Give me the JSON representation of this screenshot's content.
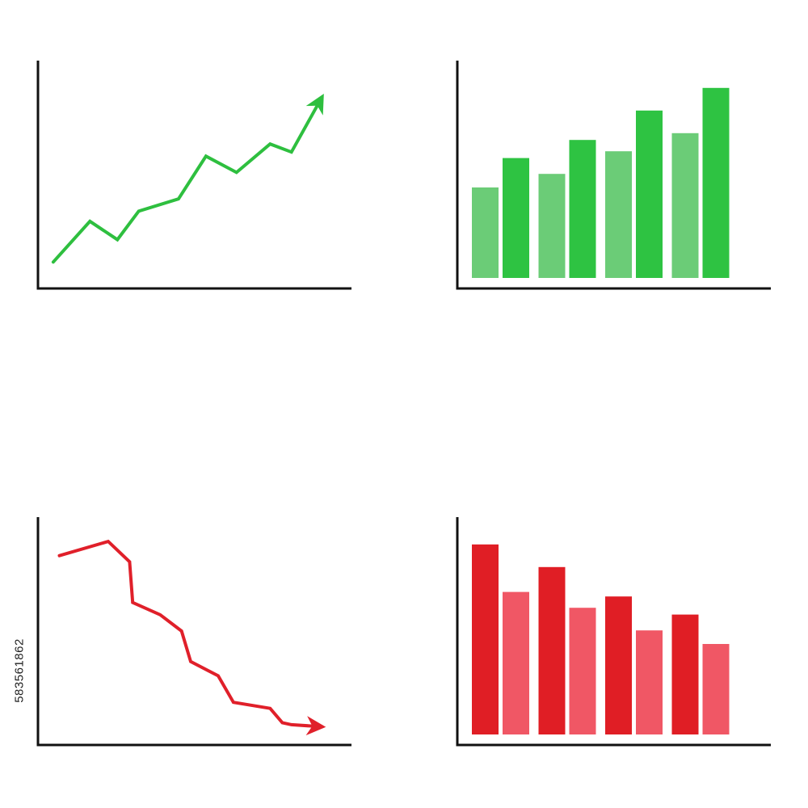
{
  "chart_data": [
    {
      "type": "line",
      "trend": "up",
      "color": "#2ebf3f",
      "end_marker": "arrow",
      "xlim": [
        0,
        10
      ],
      "ylim": [
        0,
        10
      ],
      "x": [
        0.5,
        1.7,
        2.6,
        3.3,
        4.6,
        5.5,
        6.5,
        7.6,
        8.3,
        9.3
      ],
      "y": [
        0.9,
        2.9,
        2.0,
        3.4,
        4.0,
        6.1,
        5.3,
        6.7,
        6.3,
        9.0
      ]
    },
    {
      "type": "bar",
      "trend": "up",
      "colors": {
        "light": "#6bcc77",
        "dark": "#2ec342"
      },
      "ylim": [
        0,
        10
      ],
      "values": [
        4.0,
        5.3,
        4.6,
        6.1,
        5.6,
        7.4,
        6.4,
        8.4
      ],
      "shades": [
        "light",
        "dark",
        "light",
        "dark",
        "light",
        "dark",
        "light",
        "dark"
      ]
    },
    {
      "type": "line",
      "trend": "down",
      "color": "#e0202a",
      "end_marker": "arrow",
      "xlim": [
        0,
        10
      ],
      "ylim": [
        0,
        10
      ],
      "x": [
        0.7,
        2.3,
        3.0,
        3.1,
        4.0,
        4.7,
        5.0,
        5.9,
        6.4,
        7.6,
        8.0,
        8.3,
        9.3
      ],
      "y": [
        8.9,
        9.6,
        8.6,
        6.6,
        6.0,
        5.2,
        3.7,
        3.0,
        1.7,
        1.4,
        0.7,
        0.6,
        0.5
      ]
    },
    {
      "type": "bar",
      "trend": "down",
      "colors": {
        "dark": "#e01e25",
        "light": "#f05765"
      },
      "ylim": [
        0,
        10
      ],
      "values": [
        8.4,
        6.3,
        7.4,
        5.6,
        6.1,
        4.6,
        5.3,
        4.0
      ],
      "shades": [
        "dark",
        "light",
        "dark",
        "light",
        "dark",
        "light",
        "dark",
        "light"
      ]
    }
  ],
  "stock_id": "583561862",
  "axis_color": "#111111"
}
